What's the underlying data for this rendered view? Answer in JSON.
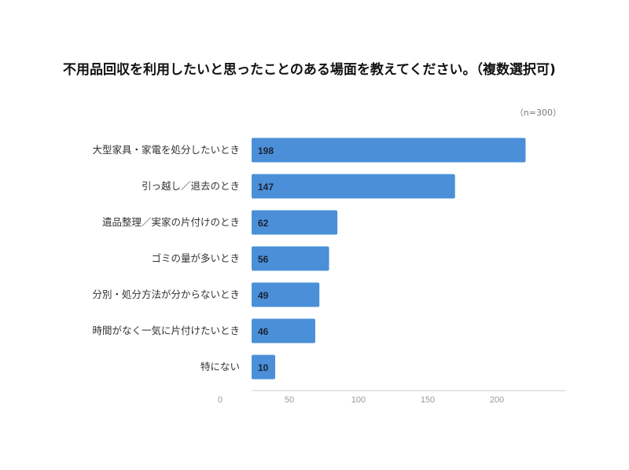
{
  "chart_data": {
    "type": "bar",
    "orientation": "horizontal",
    "title": "不用品回収を利用したいと思ったことのある場面を教えてください。（複数選択可)",
    "annotation": "（n=300）",
    "categories": [
      "大型家具・家電を処分したいとき",
      "引っ越し／退去のとき",
      "遺品整理／実家の片付けのとき",
      "ゴミの量が多いとき",
      "分別・処分方法が分からないとき",
      "時間がなく一気に片付けたいとき",
      "特にない"
    ],
    "values": [
      198,
      147,
      62,
      56,
      49,
      46,
      10
    ],
    "x_ticks": [
      0,
      50,
      100,
      150,
      200
    ],
    "xlim": [
      0,
      250
    ],
    "grid": false,
    "bar_color": "#4a8fd8"
  }
}
